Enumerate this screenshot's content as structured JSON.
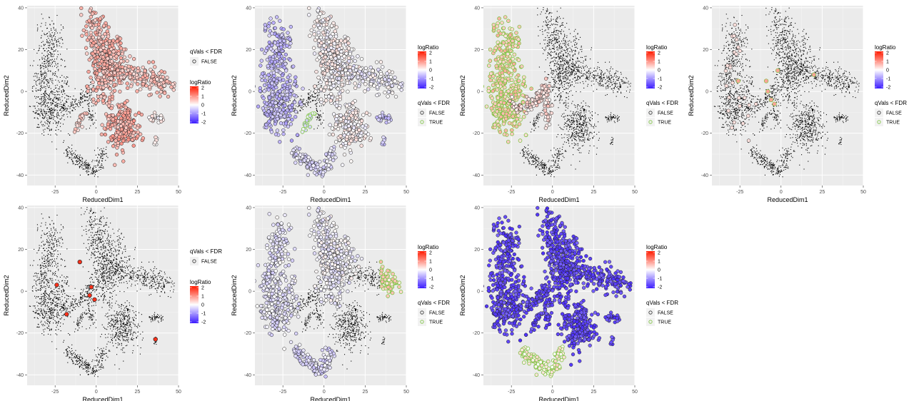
{
  "figure": {
    "panel_count": 7
  },
  "colors": {
    "panel_bg": "#ebebeb",
    "grid": "#ffffff",
    "cell": "#000000",
    "low": "#3b1bff",
    "mid": "#ffffff",
    "high": "#ff1a00",
    "sig_true": "#7dc242",
    "sig_false": "#bdbdbd"
  },
  "chart_data": [
    {
      "type": "scatter",
      "xlabel": "ReducedDim1",
      "ylabel": "ReducedDim2",
      "xlim": [
        -42,
        50
      ],
      "ylim": [
        -45,
        41
      ],
      "xticks": [
        -25,
        0,
        25,
        50
      ],
      "yticks": [
        -40,
        -20,
        0,
        20,
        40
      ],
      "grid": true,
      "legend": {
        "order": "sig-first",
        "sig_title": "qVals < FDR",
        "sig_levels": [
          "FALSE"
        ],
        "color_title": "logRatio",
        "color_ticks": [
          2,
          1,
          0,
          -1,
          -2
        ]
      },
      "highlight_groups": [
        {
          "region": "top-center",
          "logRatio": 0.6,
          "significant": false
        },
        {
          "region": "center-right-arm",
          "logRatio": 0.5,
          "significant": false
        },
        {
          "region": "center-right-blob",
          "logRatio": 0.7,
          "significant": false
        },
        {
          "region": "left-small",
          "logRatio": 0.4,
          "significant": false
        },
        {
          "region": "right-small",
          "logRatio": 0.1,
          "significant": false
        }
      ]
    },
    {
      "type": "scatter",
      "xlabel": "ReducedDim1",
      "ylabel": "ReducedDim2",
      "xlim": [
        -42,
        50
      ],
      "ylim": [
        -45,
        41
      ],
      "xticks": [
        -25,
        0,
        25,
        50
      ],
      "yticks": [
        -40,
        -20,
        0,
        20,
        40
      ],
      "grid": true,
      "legend": {
        "order": "color-first",
        "color_title": "logRatio",
        "color_ticks": [
          2,
          1,
          0,
          -1,
          -2
        ],
        "sig_title": "qVals < FDR",
        "sig_levels": [
          "FALSE",
          "TRUE"
        ]
      },
      "highlight_groups": [
        {
          "region": "left-big",
          "logRatio": -0.6,
          "significant": false
        },
        {
          "region": "top-center",
          "logRatio": 0.05,
          "significant": false
        },
        {
          "region": "center-right-blob",
          "logRatio": 0.05,
          "significant": false
        },
        {
          "region": "center-right-arm",
          "logRatio": -0.1,
          "significant": false
        },
        {
          "region": "left-small",
          "logRatio": -0.3,
          "significant": true
        },
        {
          "region": "right-small",
          "logRatio": -0.5,
          "significant": false
        },
        {
          "region": "bottom-arc",
          "logRatio": -0.3,
          "significant": false
        }
      ]
    },
    {
      "type": "scatter",
      "xlabel": "ReducedDim1",
      "ylabel": "ReducedDim2",
      "xlim": [
        -42,
        50
      ],
      "ylim": [
        -45,
        41
      ],
      "xticks": [
        -25,
        0,
        25,
        50
      ],
      "yticks": [
        -40,
        -20,
        0,
        20,
        40
      ],
      "grid": true,
      "legend": {
        "order": "color-first",
        "color_title": "logRatio",
        "color_ticks": [
          2,
          1,
          0,
          -1,
          -2
        ],
        "sig_title": "qVals < FDR",
        "sig_levels": [
          "FALSE",
          "TRUE"
        ]
      },
      "highlight_groups": [
        {
          "region": "left-big",
          "logRatio": 0.5,
          "significant": true
        },
        {
          "region": "left-arm",
          "logRatio": 0.3,
          "significant": false
        }
      ]
    },
    {
      "type": "scatter",
      "xlabel": "ReducedDim1",
      "ylabel": "ReducedDim2",
      "xlim": [
        -42,
        50
      ],
      "ylim": [
        -45,
        41
      ],
      "xticks": [
        -25,
        0,
        25,
        50
      ],
      "yticks": [
        -40,
        -20,
        0,
        20,
        40
      ],
      "grid": true,
      "legend": {
        "order": "color-first",
        "color_title": "logRatio",
        "color_ticks": [
          2,
          1,
          0,
          -1,
          -2
        ],
        "sig_title": "qVals < FDR",
        "sig_levels": [
          "FALSE",
          "TRUE"
        ]
      },
      "highlight_groups": [
        {
          "region": "center-dots",
          "logRatio": 0.8,
          "significant": true
        },
        {
          "region": "sparse-left",
          "logRatio": 0.5,
          "significant": false
        }
      ]
    },
    {
      "type": "scatter",
      "xlabel": "ReducedDim1",
      "ylabel": "ReducedDim2",
      "xlim": [
        -42,
        50
      ],
      "ylim": [
        -45,
        41
      ],
      "xticks": [
        -25,
        0,
        25,
        50
      ],
      "yticks": [
        -40,
        -20,
        0,
        20,
        40
      ],
      "grid": true,
      "legend": {
        "order": "sig-first",
        "sig_title": "qVals < FDR",
        "sig_levels": [
          "FALSE"
        ],
        "color_title": "logRatio",
        "color_ticks": [
          2,
          1,
          0,
          -1,
          -2
        ]
      },
      "highlight_groups": [
        {
          "region": "red-dots",
          "logRatio": 1.8,
          "significant": false
        }
      ]
    },
    {
      "type": "scatter",
      "xlabel": "ReducedDim1",
      "ylabel": "ReducedDim2",
      "xlim": [
        -42,
        50
      ],
      "ylim": [
        -45,
        41
      ],
      "xticks": [
        -25,
        0,
        25,
        50
      ],
      "yticks": [
        -40,
        -20,
        0,
        20,
        40
      ],
      "grid": true,
      "legend": {
        "order": "color-first",
        "color_title": "logRatio",
        "color_ticks": [
          2,
          1,
          0,
          -1,
          -2
        ],
        "sig_title": "qVals < FDR",
        "sig_levels": [
          "FALSE",
          "TRUE"
        ]
      },
      "highlight_groups": [
        {
          "region": "right-end",
          "logRatio": 0.4,
          "significant": true
        },
        {
          "region": "top-center",
          "logRatio": -0.1,
          "significant": false
        },
        {
          "region": "left-big",
          "logRatio": -0.2,
          "significant": false
        },
        {
          "region": "bottom-arc",
          "logRatio": -0.3,
          "significant": false
        }
      ]
    },
    {
      "type": "scatter",
      "xlabel": "ReducedDim1",
      "ylabel": "ReducedDim2",
      "xlim": [
        -42,
        50
      ],
      "ylim": [
        -45,
        41
      ],
      "xticks": [
        -25,
        0,
        25,
        50
      ],
      "yticks": [
        -40,
        -20,
        0,
        20,
        40
      ],
      "grid": true,
      "legend": {
        "order": "color-first",
        "color_title": "logRatio",
        "color_ticks": [
          2,
          1,
          0,
          -1,
          -2
        ],
        "sig_title": "qVals < FDR",
        "sig_levels": [
          "FALSE",
          "TRUE"
        ]
      },
      "highlight_groups": [
        {
          "region": "all-except-bottom",
          "logRatio": -1.6,
          "significant": false
        },
        {
          "region": "bottom-arc",
          "logRatio": 0.2,
          "significant": true
        }
      ]
    }
  ]
}
